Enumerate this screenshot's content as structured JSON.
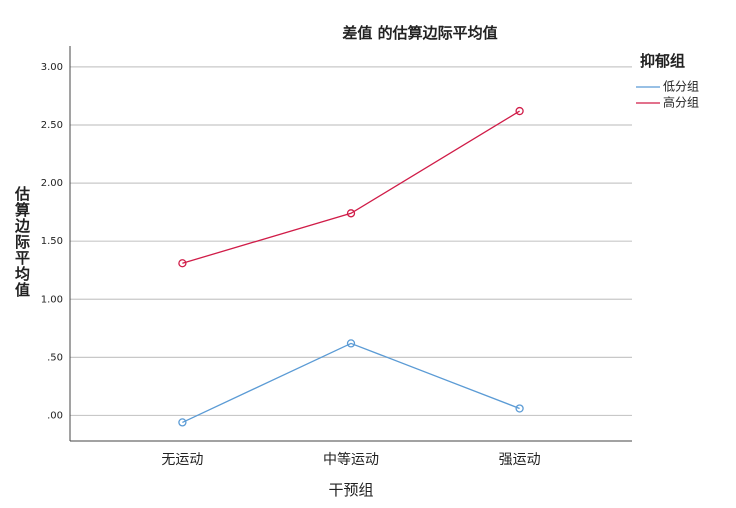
{
  "chart_data": {
    "type": "line",
    "title": "差值 的估算边际平均值",
    "x_label": "干预组",
    "y_label": "估算边际平均值",
    "legend_title": "抑郁组",
    "categories": [
      "无运动",
      "中等运动",
      "强运动"
    ],
    "series": [
      {
        "name": "低分组",
        "color": "#5b9bd5",
        "values": [
          -0.06,
          0.62,
          0.06
        ]
      },
      {
        "name": "高分组",
        "color": "#d01c48",
        "values": [
          1.31,
          1.74,
          2.62
        ]
      }
    ],
    "ylim": [
      -0.22,
      3.18
    ],
    "yticks": [
      {
        "value": 0,
        "label": ".00"
      },
      {
        "value": 0.5,
        "label": ".50"
      },
      {
        "value": 1,
        "label": "1.00"
      },
      {
        "value": 1.5,
        "label": "1.50"
      },
      {
        "value": 2,
        "label": "2.00"
      },
      {
        "value": 2.5,
        "label": "2.50"
      },
      {
        "value": 3,
        "label": "3.00"
      }
    ],
    "grid": true
  }
}
